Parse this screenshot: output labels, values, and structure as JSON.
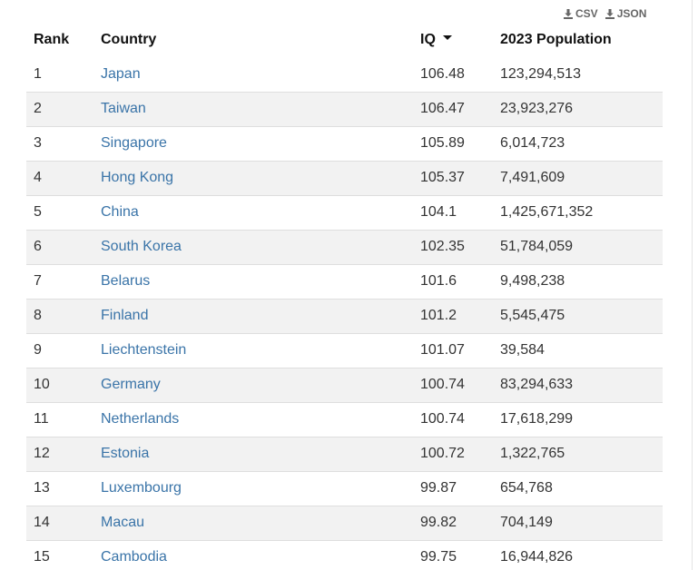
{
  "downloads": {
    "csv_label": "CSV",
    "json_label": "JSON"
  },
  "table": {
    "headers": {
      "rank": "Rank",
      "country": "Country",
      "iq": "IQ",
      "population": "2023 Population"
    },
    "sorted_by": "iq",
    "sort_direction": "descending",
    "rows": [
      {
        "rank": "1",
        "country": "Japan",
        "iq": "106.48",
        "population": "123,294,513"
      },
      {
        "rank": "2",
        "country": "Taiwan",
        "iq": "106.47",
        "population": "23,923,276"
      },
      {
        "rank": "3",
        "country": "Singapore",
        "iq": "105.89",
        "population": "6,014,723"
      },
      {
        "rank": "4",
        "country": "Hong Kong",
        "iq": "105.37",
        "population": "7,491,609"
      },
      {
        "rank": "5",
        "country": "China",
        "iq": "104.1",
        "population": "1,425,671,352"
      },
      {
        "rank": "6",
        "country": "South Korea",
        "iq": "102.35",
        "population": "51,784,059"
      },
      {
        "rank": "7",
        "country": "Belarus",
        "iq": "101.6",
        "population": "9,498,238"
      },
      {
        "rank": "8",
        "country": "Finland",
        "iq": "101.2",
        "population": "5,545,475"
      },
      {
        "rank": "9",
        "country": "Liechtenstein",
        "iq": "101.07",
        "population": "39,584"
      },
      {
        "rank": "10",
        "country": "Germany",
        "iq": "100.74",
        "population": "83,294,633"
      },
      {
        "rank": "11",
        "country": "Netherlands",
        "iq": "100.74",
        "population": "17,618,299"
      },
      {
        "rank": "12",
        "country": "Estonia",
        "iq": "100.72",
        "population": "1,322,765"
      },
      {
        "rank": "13",
        "country": "Luxembourg",
        "iq": "99.87",
        "population": "654,768"
      },
      {
        "rank": "14",
        "country": "Macau",
        "iq": "99.82",
        "population": "704,149"
      },
      {
        "rank": "15",
        "country": "Cambodia",
        "iq": "99.75",
        "population": "16,944,826"
      }
    ]
  },
  "colors": {
    "link": "#3a74a8",
    "stripe": "#f2f2f2",
    "border": "#dedede",
    "download_text": "#666666"
  },
  "icons": {
    "download": "download-icon",
    "sort": "caret-down-icon"
  }
}
